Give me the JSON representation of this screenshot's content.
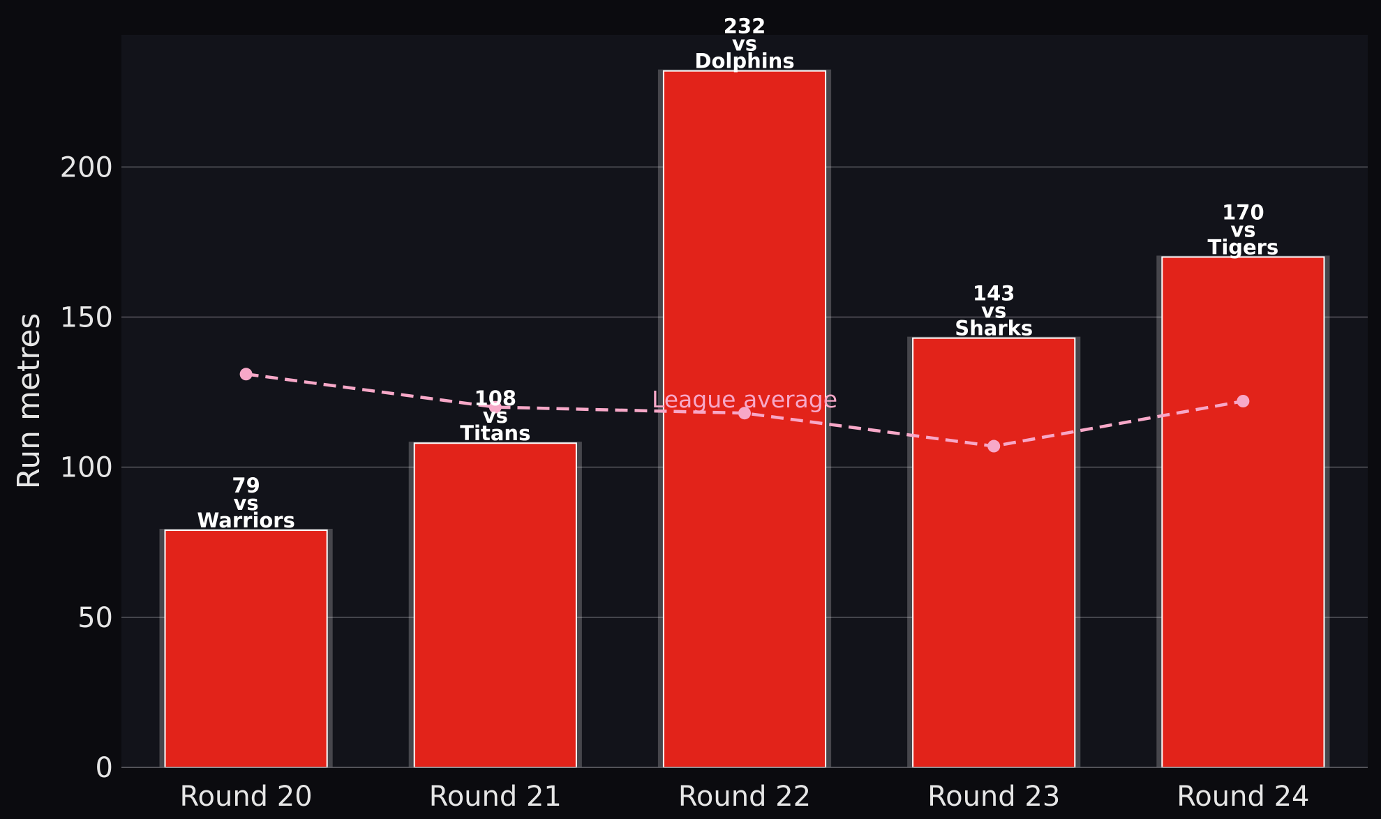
{
  "chart_data": {
    "type": "bar",
    "title": "",
    "xlabel": "",
    "ylabel": "Run metres",
    "categories": [
      "Round 20",
      "Round 21",
      "Round 22",
      "Round 23",
      "Round 24"
    ],
    "series": [
      {
        "values": [
          79,
          108,
          232,
          143,
          170
        ],
        "opponents": [
          "Warriors",
          "Titans",
          "Dolphins",
          "Sharks",
          "Tigers"
        ],
        "label_separator": "vs",
        "color": "#e2231a"
      },
      {
        "type": "line",
        "name": "League average",
        "values": [
          131,
          120,
          118,
          107,
          122
        ],
        "color": "#f7a8c8",
        "style": "dashed"
      }
    ],
    "yticks": [
      0,
      50,
      100,
      150,
      200
    ],
    "ylim": [
      0,
      244
    ],
    "grid": true,
    "colors": {
      "background": "#0b0b0f",
      "plot_background": "#12131a",
      "grid": "#5a5a60",
      "text": "#e6e6e6"
    }
  }
}
